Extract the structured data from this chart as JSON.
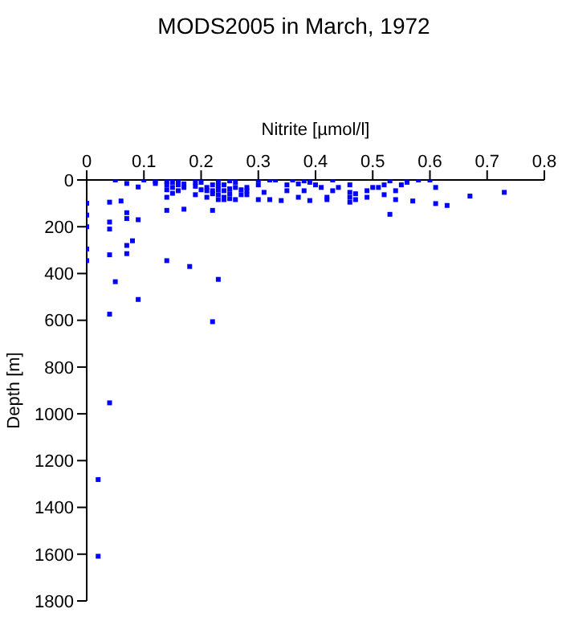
{
  "chart_data": {
    "type": "scatter",
    "title": "MODS2005 in March, 1972",
    "xlabel": "Nitrite [µmol/l]",
    "ylabel": "Depth [m]",
    "xlim": [
      0,
      0.8
    ],
    "xticks": [
      0,
      0.1,
      0.2,
      0.3,
      0.4,
      0.5,
      0.6,
      0.7,
      0.8
    ],
    "ylim": [
      1800,
      0
    ],
    "yticks": [
      0,
      200,
      400,
      600,
      800,
      1000,
      1200,
      1400,
      1600,
      1800
    ],
    "marker": "square",
    "grid": false,
    "series": [
      {
        "color": "#0000ff",
        "x": [
          0.05,
          0.07,
          0.1,
          0.09,
          0.06,
          0.04,
          0,
          0,
          0,
          0,
          0,
          0.04,
          0.04,
          0.07,
          0.07,
          0.09,
          0.08,
          0.07,
          0.07,
          0.04,
          0.05,
          0.14,
          0.18,
          0.23,
          0.14,
          0.17,
          0.22,
          0.09,
          0.04,
          0.22,
          0.04,
          0.02,
          0.02,
          0.12,
          0.12,
          0.14,
          0.14,
          0.14,
          0.14,
          0.15,
          0.15,
          0.15,
          0.16,
          0.16,
          0.16,
          0.17,
          0.17,
          0.19,
          0.19,
          0.19,
          0.2,
          0.2,
          0.21,
          0.21,
          0.21,
          0.22,
          0.22,
          0.22,
          0.23,
          0.23,
          0.23,
          0.23,
          0.23,
          0.24,
          0.24,
          0.24,
          0.24,
          0.25,
          0.25,
          0.25,
          0.25,
          0.26,
          0.26,
          0.26,
          0.27,
          0.27,
          0.28,
          0.28,
          0.28,
          0.3,
          0.3,
          0.3,
          0.31,
          0.32,
          0.32,
          0.33,
          0.34,
          0.35,
          0.35,
          0.36,
          0.37,
          0.37,
          0.38,
          0.38,
          0.39,
          0.39,
          0.4,
          0.41,
          0.42,
          0.42,
          0.43,
          0.43,
          0.44,
          0.46,
          0.46,
          0.46,
          0.46,
          0.47,
          0.47,
          0.49,
          0.49,
          0.5,
          0.51,
          0.52,
          0.52,
          0.53,
          0.53,
          0.54,
          0.54,
          0.55,
          0.56,
          0.57,
          0.58,
          0.6,
          0.61,
          0.61,
          0.63,
          0.67,
          0.73
        ],
        "values": [
          0,
          15,
          0,
          30,
          90,
          95,
          100,
          150,
          200,
          295,
          345,
          180,
          210,
          140,
          165,
          170,
          260,
          280,
          315,
          320,
          435,
          345,
          370,
          425,
          130,
          125,
          130,
          511,
          574,
          606,
          953,
          1281,
          1609,
          6,
          15,
          6,
          21,
          42,
          74,
          10,
          32,
          57,
          4,
          21,
          46,
          17,
          32,
          10,
          27,
          63,
          10,
          42,
          32,
          46,
          74,
          21,
          46,
          59,
          10,
          25,
          42,
          63,
          84,
          21,
          46,
          74,
          84,
          4,
          38,
          59,
          80,
          10,
          32,
          84,
          42,
          63,
          32,
          46,
          63,
          0,
          21,
          84,
          53,
          0,
          84,
          0,
          88,
          21,
          46,
          0,
          17,
          74,
          4,
          46,
          10,
          88,
          21,
          32,
          74,
          84,
          0,
          46,
          32,
          21,
          53,
          74,
          95,
          59,
          84,
          46,
          74,
          32,
          32,
          21,
          63,
          4,
          147,
          46,
          84,
          21,
          10,
          90,
          0,
          0,
          32,
          101,
          109,
          69,
          53
        ]
      }
    ]
  }
}
